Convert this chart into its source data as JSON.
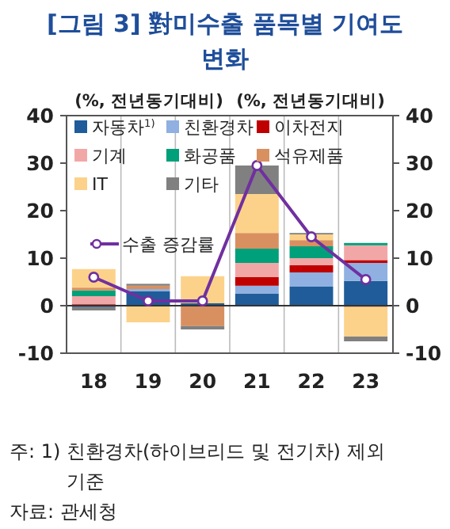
{
  "chart_data": {
    "type": "bar",
    "stacked": true,
    "title": "[그림 3]  對미수출 품목별 기여도 변화",
    "ylabel": "(%, 전년동기대비)",
    "y2label": "(%, 전년동기대비)",
    "categories": [
      "18",
      "19",
      "20",
      "21",
      "22",
      "23"
    ],
    "series": [
      {
        "name": "자동차$^{1)}$",
        "color": "#1f5c99",
        "values": [
          -0.3,
          3.0,
          0.5,
          2.5,
          4.0,
          5.2
        ]
      },
      {
        "name": "친환경차",
        "color": "#8fb0e0",
        "values": [
          0,
          0.5,
          0,
          1.7,
          3.0,
          3.8
        ]
      },
      {
        "name": "이차전지",
        "color": "#c00000",
        "values": [
          0.3,
          0,
          0,
          1.8,
          1.5,
          0.6
        ]
      },
      {
        "name": "기계",
        "color": "#f2a7a7",
        "values": [
          1.7,
          0,
          0,
          3.0,
          1.5,
          3.1
        ]
      },
      {
        "name": "화공품",
        "color": "#00a07a",
        "values": [
          1.2,
          0,
          0,
          3.0,
          2.5,
          0.5
        ]
      },
      {
        "name": "석유제품",
        "color": "#d99060",
        "values": [
          0.6,
          0.7,
          -4.3,
          3.3,
          1.3,
          -0.3
        ]
      },
      {
        "name": "IT",
        "color": "#fcd28a",
        "values": [
          3.9,
          -3.5,
          5.7,
          8.2,
          1.2,
          -6.2
        ]
      },
      {
        "name": "기타",
        "color": "#808080",
        "values": [
          -0.7,
          0.4,
          -0.7,
          6.0,
          0.3,
          -1.0
        ]
      },
      {
        "name": "수출 증감률",
        "type": "line",
        "color": "#7030a0",
        "marker": "circle",
        "values": [
          6.0,
          1.0,
          1.0,
          29.5,
          14.5,
          5.5
        ]
      }
    ],
    "ylim": [
      -10,
      40
    ],
    "yticks": [
      -10,
      0,
      10,
      20,
      30,
      40
    ],
    "y2lim": [
      -10,
      40
    ],
    "y2ticks": [
      -10,
      0,
      10,
      20,
      30,
      40
    ],
    "grid": "x",
    "legend": "top left",
    "annotations": [
      "주: 1) 친환경차(하이브리드 및 전기차) 제외 기준",
      "자료: 관세청"
    ]
  }
}
